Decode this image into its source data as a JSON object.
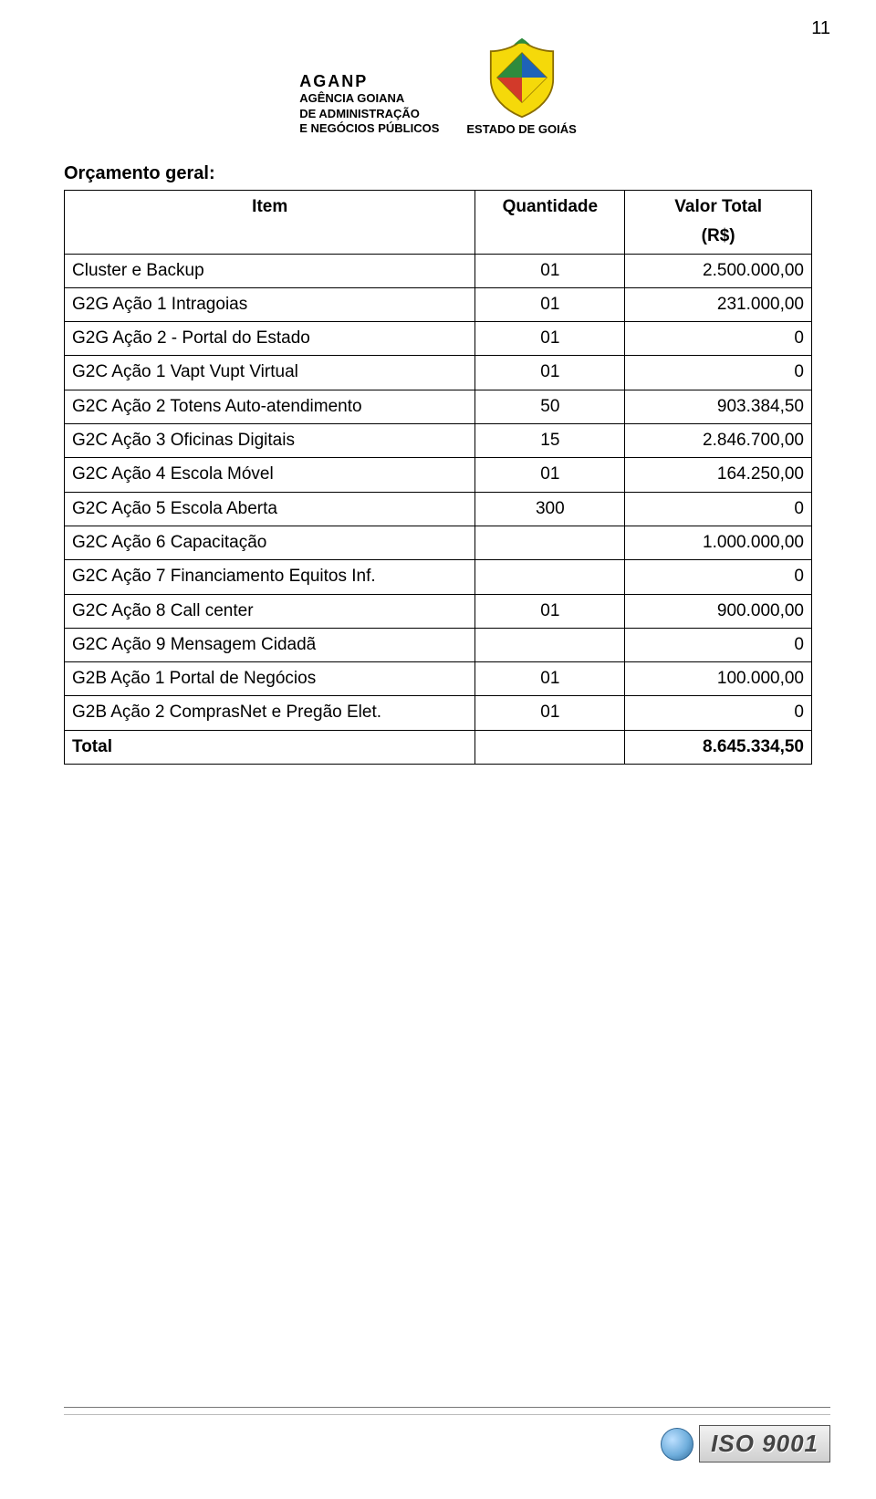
{
  "page_number": "11",
  "header": {
    "aganp_title": "AGANP",
    "aganp_line1": "AGÊNCIA GOIANA",
    "aganp_line2": "DE ADMINISTRAÇÃO",
    "aganp_line3": "E NEGÓCIOS PÚBLICOS",
    "crest_label": "ESTADO DE GOIÁS"
  },
  "section_title": "Orçamento geral:",
  "table": {
    "columns": [
      "Item",
      "Quantidade",
      "Valor Total (R$)"
    ],
    "col_item": "Item",
    "col_qty": "Quantidade",
    "col_val_l1": "Valor Total",
    "col_val_l2": "(R$)",
    "rows": [
      {
        "item": "Cluster e Backup",
        "qty": "01",
        "val": "2.500.000,00"
      },
      {
        "item": "G2G Ação 1 Intragoias",
        "qty": "01",
        "val": "231.000,00"
      },
      {
        "item": "G2G Ação 2 - Portal do Estado",
        "qty": "01",
        "val": "0"
      },
      {
        "item": "G2C Ação 1 Vapt Vupt Virtual",
        "qty": "01",
        "val": "0"
      },
      {
        "item": "G2C Ação 2 Totens Auto-atendimento",
        "qty": "50",
        "val": "903.384,50"
      },
      {
        "item": "G2C Ação 3 Oficinas Digitais",
        "qty": "15",
        "val": "2.846.700,00"
      },
      {
        "item": "G2C Ação 4 Escola Móvel",
        "qty": "01",
        "val": "164.250,00"
      },
      {
        "item": "G2C Ação 5 Escola Aberta",
        "qty": "300",
        "val": "0"
      },
      {
        "item": "G2C Ação 6 Capacitação",
        "qty": "",
        "val": "1.000.000,00"
      },
      {
        "item": "G2C Ação 7 Financiamento Equitos Inf.",
        "qty": "",
        "val": "0"
      },
      {
        "item": "G2C Ação 8 Call center",
        "qty": "01",
        "val": "900.000,00"
      },
      {
        "item": "G2C Ação 9 Mensagem Cidadã",
        "qty": "",
        "val": "0"
      },
      {
        "item": "G2B Ação 1 Portal de Negócios",
        "qty": "01",
        "val": "100.000,00"
      },
      {
        "item": "G2B Ação 2 ComprasNet e Pregão Elet.",
        "qty": "01",
        "val": "0"
      }
    ],
    "total_label": "Total",
    "total_qty": "",
    "total_val": "8.645.334,50"
  },
  "iso_badge": "ISO 9001",
  "crest_colors": {
    "green": "#2e8b3d",
    "yellow": "#f5d90a",
    "blue": "#1e63b8",
    "red": "#d23a2a",
    "white": "#ffffff"
  },
  "text_color": "#000000",
  "background_color": "#ffffff",
  "border_color": "#000000",
  "fontsize_body": 19,
  "fontsize_title": 20,
  "fontsize_pagenum": 20
}
